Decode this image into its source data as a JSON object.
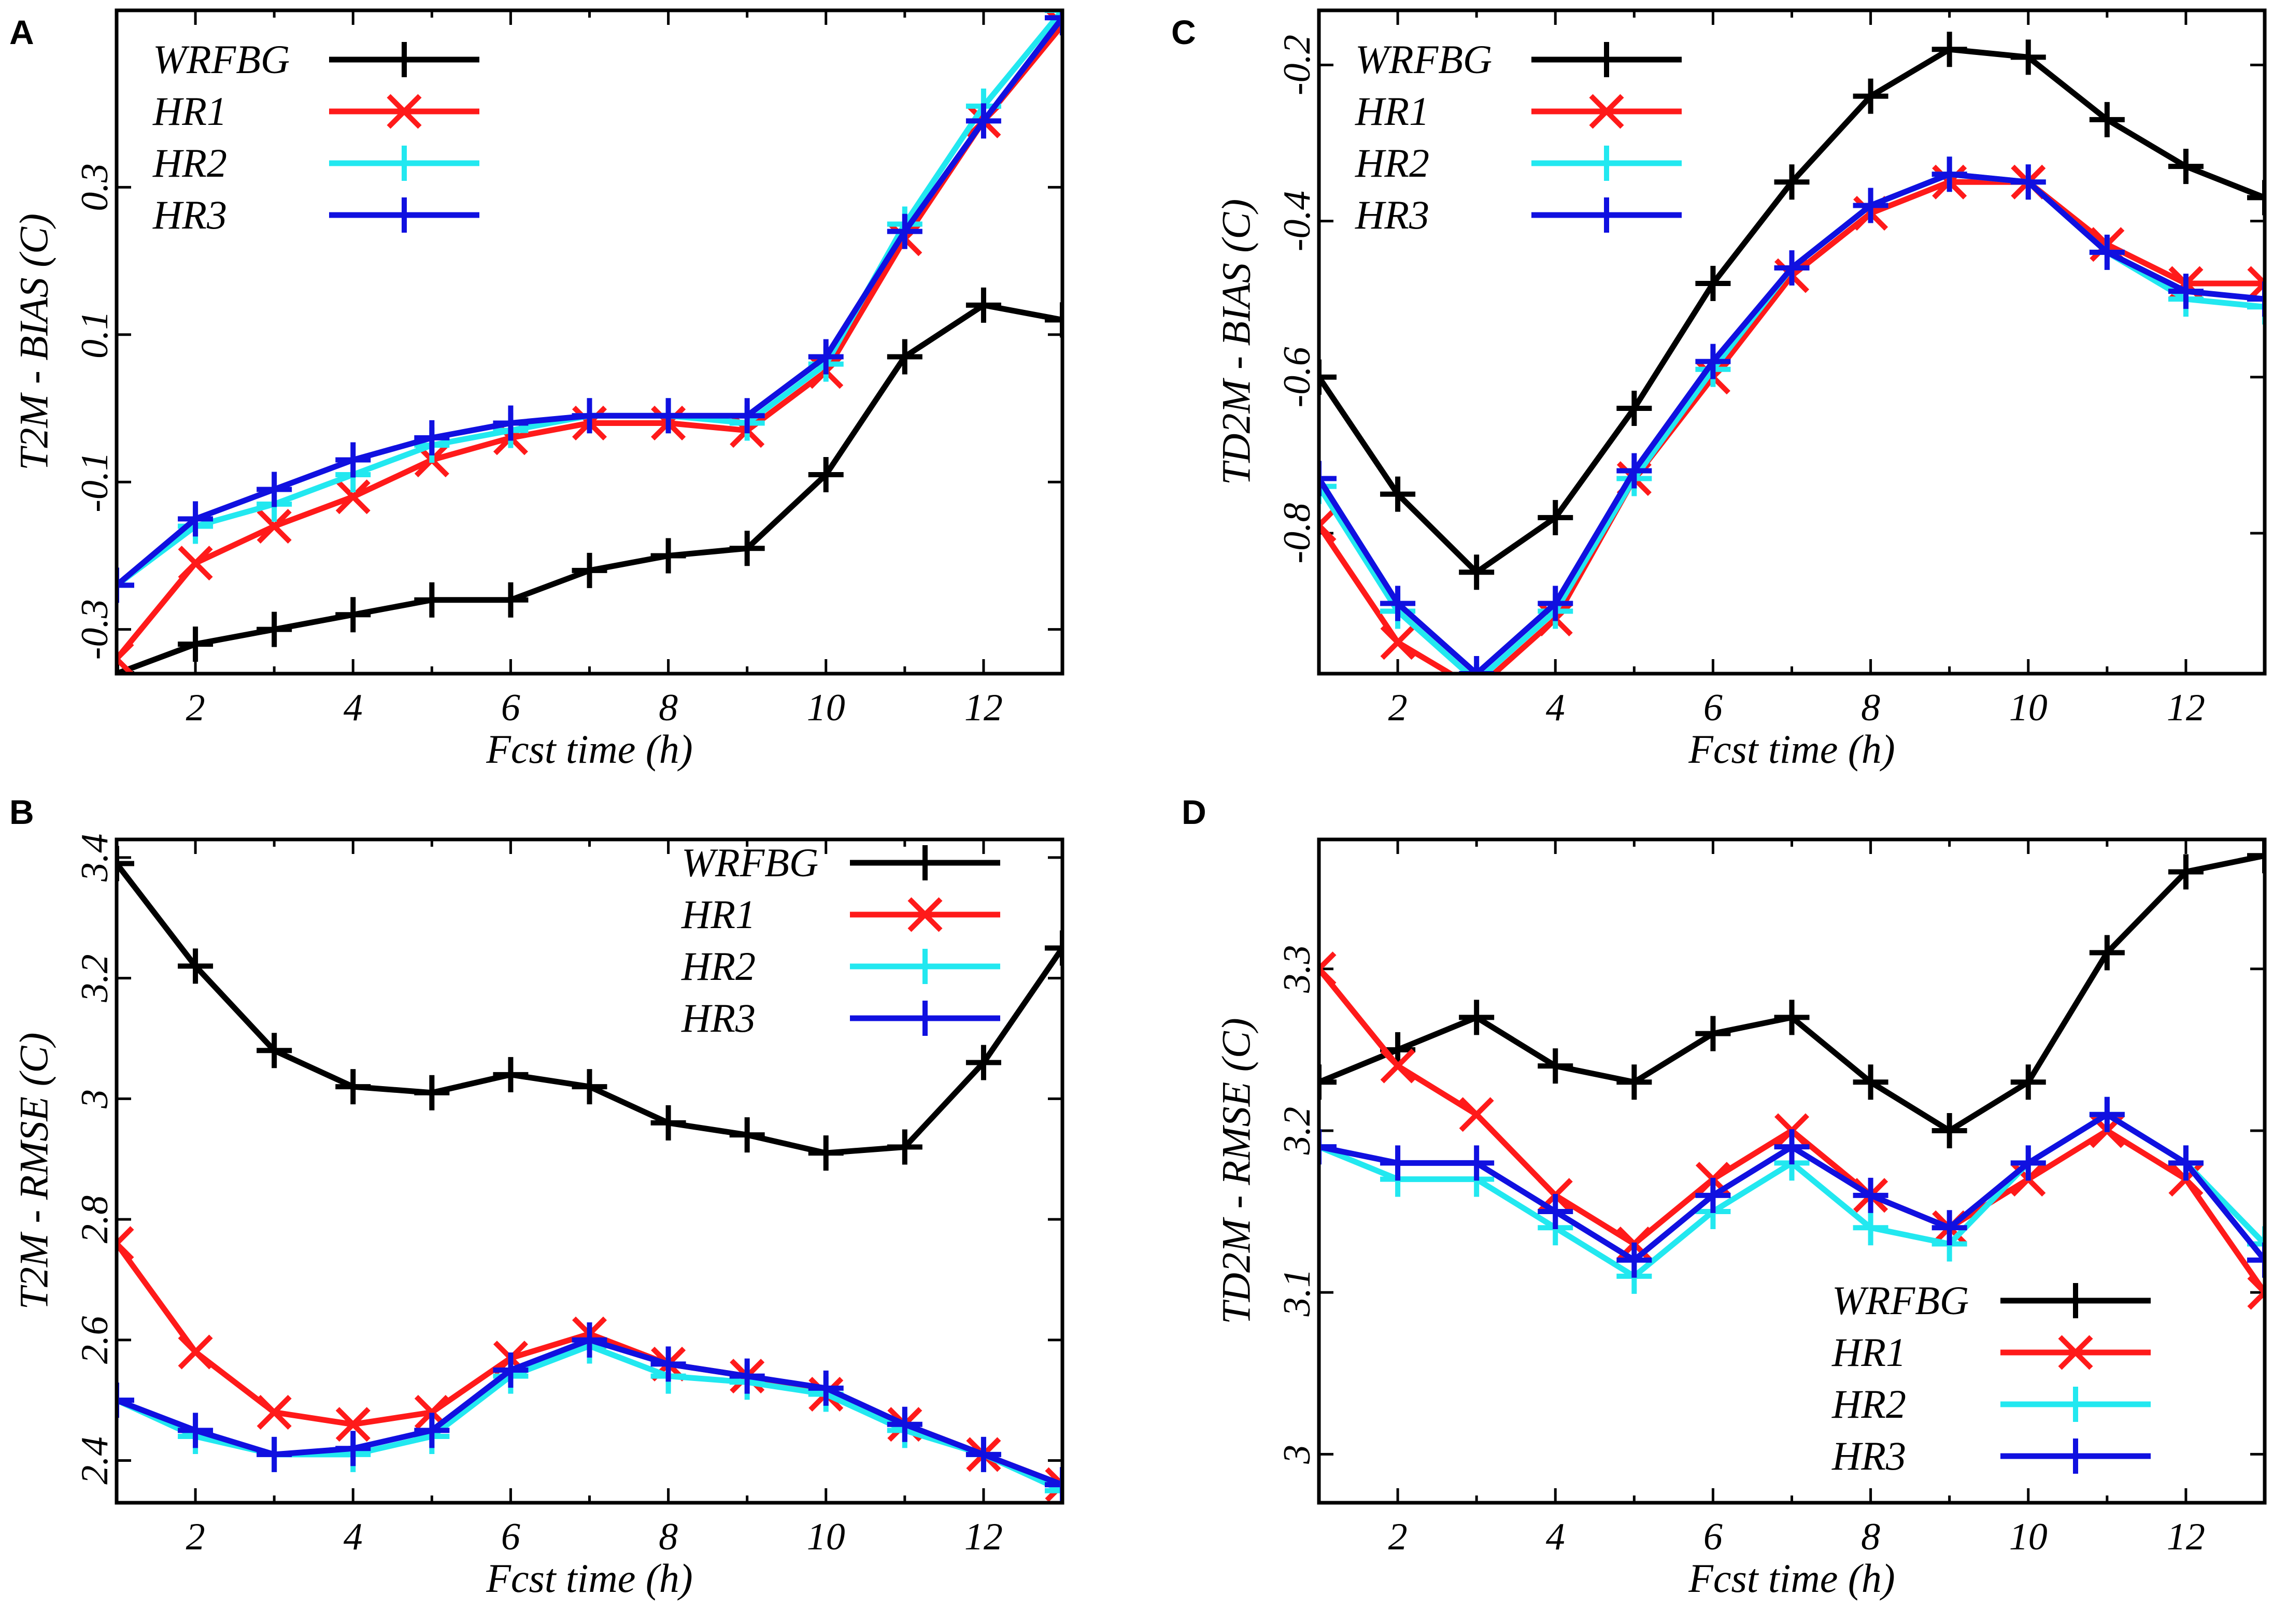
{
  "colors": {
    "WRFBG": "#000000",
    "HR1": "#ff1a1a",
    "HR2": "#22e8f0",
    "HR3": "#1010e0"
  },
  "chart_data": [
    {
      "id": "A",
      "type": "line",
      "panel_label": "A",
      "xlabel": "Fcst time (h)",
      "ylabel": "T2M - BIAS (C)",
      "xlim": [
        1,
        13
      ],
      "ylim": [
        -0.36,
        0.54
      ],
      "xticks": [
        2,
        4,
        6,
        8,
        10,
        12
      ],
      "yticks": [
        -0.3,
        -0.1,
        0.1,
        0.3
      ],
      "ytick_labels": [
        "-0.3",
        "-0.1",
        "0.1",
        "0.3"
      ],
      "legend": "top-left",
      "x": [
        1,
        2,
        3,
        4,
        5,
        6,
        7,
        8,
        9,
        10,
        11,
        12,
        13
      ],
      "series": [
        {
          "name": "WRFBG",
          "marker": "plus",
          "values": [
            -0.36,
            -0.32,
            -0.3,
            -0.28,
            -0.26,
            -0.26,
            -0.22,
            -0.2,
            -0.19,
            -0.09,
            0.07,
            0.14,
            0.12
          ]
        },
        {
          "name": "HR1",
          "marker": "x",
          "values": [
            -0.34,
            -0.21,
            -0.16,
            -0.12,
            -0.07,
            -0.04,
            -0.02,
            -0.02,
            -0.03,
            0.05,
            0.23,
            0.39,
            0.52
          ]
        },
        {
          "name": "HR2",
          "marker": "plus",
          "values": [
            -0.24,
            -0.16,
            -0.13,
            -0.09,
            -0.05,
            -0.03,
            -0.01,
            -0.01,
            -0.02,
            0.06,
            0.25,
            0.41,
            0.54
          ]
        },
        {
          "name": "HR3",
          "marker": "plus",
          "values": [
            -0.24,
            -0.15,
            -0.11,
            -0.07,
            -0.04,
            -0.02,
            -0.01,
            -0.01,
            -0.01,
            0.07,
            0.24,
            0.39,
            0.53
          ]
        }
      ]
    },
    {
      "id": "C",
      "type": "line",
      "panel_label": "C",
      "xlabel": "Fcst time (h)",
      "ylabel": "TD2M - BIAS (C)",
      "xlim": [
        1,
        13
      ],
      "ylim": [
        -0.98,
        -0.13
      ],
      "xticks": [
        2,
        4,
        6,
        8,
        10,
        12
      ],
      "yticks": [
        -0.8,
        -0.6,
        -0.4,
        -0.2
      ],
      "ytick_labels": [
        "-0.8",
        "-0.6",
        "-0.4",
        "-0.2"
      ],
      "legend": "top-left",
      "x": [
        1,
        2,
        3,
        4,
        5,
        6,
        7,
        8,
        9,
        10,
        11,
        12,
        13
      ],
      "series": [
        {
          "name": "WRFBG",
          "marker": "plus",
          "values": [
            -0.6,
            -0.75,
            -0.85,
            -0.78,
            -0.64,
            -0.48,
            -0.35,
            -0.24,
            -0.18,
            -0.19,
            -0.27,
            -0.33,
            -0.37
          ]
        },
        {
          "name": "HR1",
          "marker": "x",
          "values": [
            -0.79,
            -0.94,
            -1.0,
            -0.91,
            -0.73,
            -0.6,
            -0.47,
            -0.39,
            -0.35,
            -0.35,
            -0.43,
            -0.48,
            -0.48
          ]
        },
        {
          "name": "HR2",
          "marker": "plus",
          "values": [
            -0.74,
            -0.9,
            -0.99,
            -0.9,
            -0.73,
            -0.59,
            -0.46,
            -0.38,
            -0.34,
            -0.35,
            -0.44,
            -0.5,
            -0.51
          ]
        },
        {
          "name": "HR3",
          "marker": "plus",
          "values": [
            -0.73,
            -0.89,
            -0.98,
            -0.89,
            -0.72,
            -0.58,
            -0.46,
            -0.38,
            -0.34,
            -0.35,
            -0.44,
            -0.49,
            -0.5
          ]
        }
      ]
    },
    {
      "id": "B",
      "type": "line",
      "panel_label": "B",
      "xlabel": "Fcst time (h)",
      "ylabel": "T2M - RMSE (C)",
      "xlim": [
        1,
        13
      ],
      "ylim": [
        2.33,
        3.43
      ],
      "xticks": [
        2,
        4,
        6,
        8,
        10,
        12
      ],
      "yticks": [
        2.4,
        2.6,
        2.8,
        3.0,
        3.2,
        3.4
      ],
      "ytick_labels": [
        "2.4",
        "2.6",
        "2.8",
        "3",
        "3.2",
        "3.4"
      ],
      "legend": "top-right",
      "x": [
        1,
        2,
        3,
        4,
        5,
        6,
        7,
        8,
        9,
        10,
        11,
        12,
        13
      ],
      "series": [
        {
          "name": "WRFBG",
          "marker": "plus",
          "values": [
            3.39,
            3.22,
            3.08,
            3.02,
            3.01,
            3.04,
            3.02,
            2.96,
            2.94,
            2.91,
            2.92,
            3.06,
            3.25
          ]
        },
        {
          "name": "HR1",
          "marker": "x",
          "values": [
            2.76,
            2.58,
            2.48,
            2.46,
            2.48,
            2.57,
            2.61,
            2.56,
            2.54,
            2.51,
            2.46,
            2.41,
            2.36
          ]
        },
        {
          "name": "HR2",
          "marker": "plus",
          "values": [
            2.5,
            2.44,
            2.41,
            2.41,
            2.44,
            2.54,
            2.59,
            2.54,
            2.53,
            2.51,
            2.45,
            2.41,
            2.35
          ]
        },
        {
          "name": "HR3",
          "marker": "plus",
          "values": [
            2.5,
            2.45,
            2.41,
            2.42,
            2.45,
            2.55,
            2.6,
            2.56,
            2.54,
            2.52,
            2.46,
            2.41,
            2.36
          ]
        }
      ]
    },
    {
      "id": "D",
      "type": "line",
      "panel_label": "D",
      "xlabel": "Fcst time (h)",
      "ylabel": "TD2M - RMSE (C)",
      "xlim": [
        1,
        13
      ],
      "ylim": [
        2.97,
        3.38
      ],
      "xticks": [
        2,
        4,
        6,
        8,
        10,
        12
      ],
      "yticks": [
        3.0,
        3.1,
        3.2,
        3.3
      ],
      "ytick_labels": [
        "3",
        "3.1",
        "3.2",
        "3.3"
      ],
      "legend": "bottom-right",
      "x": [
        1,
        2,
        3,
        4,
        5,
        6,
        7,
        8,
        9,
        10,
        11,
        12,
        13
      ],
      "series": [
        {
          "name": "WRFBG",
          "marker": "plus",
          "values": [
            3.23,
            3.25,
            3.27,
            3.24,
            3.23,
            3.26,
            3.27,
            3.23,
            3.2,
            3.23,
            3.31,
            3.36,
            3.37
          ]
        },
        {
          "name": "HR1",
          "marker": "x",
          "values": [
            3.3,
            3.24,
            3.21,
            3.16,
            3.13,
            3.17,
            3.2,
            3.16,
            3.14,
            3.17,
            3.2,
            3.17,
            3.1
          ]
        },
        {
          "name": "HR2",
          "marker": "plus",
          "values": [
            3.19,
            3.17,
            3.17,
            3.14,
            3.11,
            3.15,
            3.18,
            3.14,
            3.13,
            3.18,
            3.21,
            3.18,
            3.13
          ]
        },
        {
          "name": "HR3",
          "marker": "plus",
          "values": [
            3.19,
            3.18,
            3.18,
            3.15,
            3.12,
            3.16,
            3.19,
            3.16,
            3.14,
            3.18,
            3.21,
            3.18,
            3.12
          ]
        }
      ]
    }
  ]
}
